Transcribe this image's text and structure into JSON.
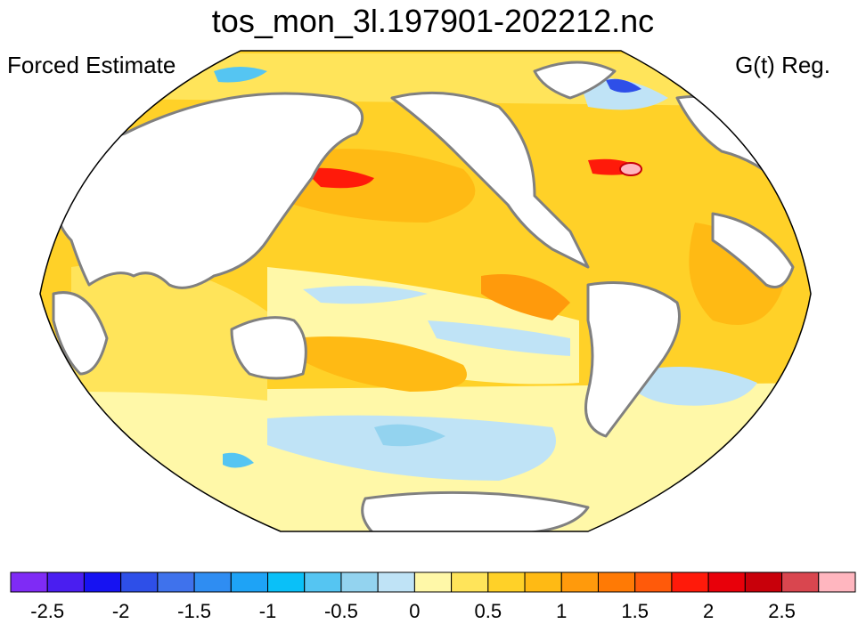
{
  "title": "tos_mon_3l.197901-202212.nc",
  "left_label": "Forced Estimate",
  "right_label": "G(t) Reg.",
  "colorbar": {
    "colors": [
      "#7f2bf5",
      "#4a1ef0",
      "#1612f2",
      "#2e4fe8",
      "#3f72ec",
      "#2f8df2",
      "#1ea3f6",
      "#0ac0f8",
      "#55c5f2",
      "#93d3ef",
      "#bfe3f6",
      "#fff8a8",
      "#ffe45a",
      "#ffd128",
      "#ffba14",
      "#ff9a0c",
      "#ff7a05",
      "#ff5a0a",
      "#ff1a0a",
      "#e8000a",
      "#c8000a",
      "#d9464f",
      "#ffb6bf"
    ],
    "tick_labels": [
      "-2.5",
      "-2",
      "-1.5",
      "-1",
      "-0.5",
      "0",
      "0.5",
      "1",
      "1.5",
      "2",
      "2.5"
    ],
    "min": -2.75,
    "max": 2.75,
    "step": 0.25
  },
  "map": {
    "projection": "robinson",
    "ocean_base_color": "#ffe45a",
    "coast_color": "#808080"
  }
}
